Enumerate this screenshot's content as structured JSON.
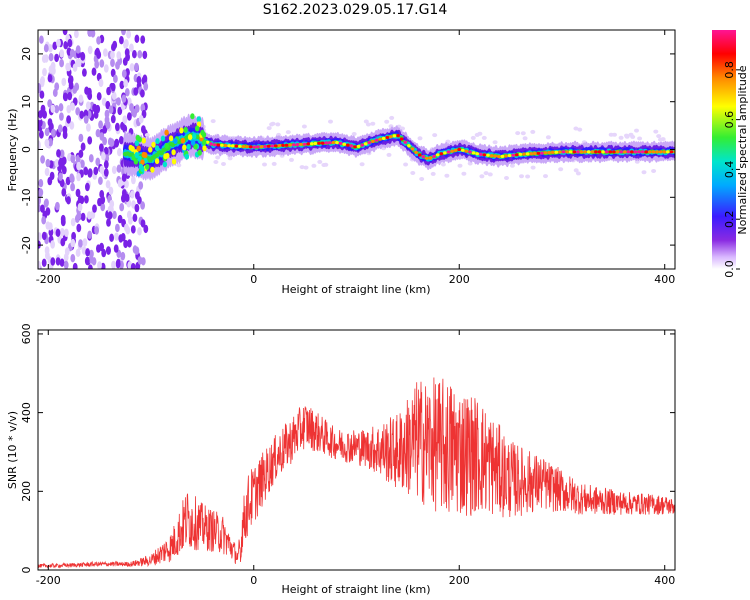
{
  "title": "S162.2023.029.05.17.G14",
  "colors": {
    "snr_line": "#ee3333",
    "axis": "#000000",
    "colormap": [
      "#ffffff",
      "#d9b8ff",
      "#8a2be2",
      "#3b1bff",
      "#00aaff",
      "#00e5cc",
      "#33ee33",
      "#ffff00",
      "#ff8800",
      "#ff0000",
      "#ff1493"
    ]
  },
  "chart_data": [
    {
      "type": "heatmap",
      "xlabel": "Height of straight line (km)",
      "ylabel": "Frequency (Hz)",
      "xlim": [
        -210,
        410
      ],
      "ylim": [
        -25,
        25
      ],
      "xticks": [
        -200,
        0,
        200,
        400
      ],
      "yticks": [
        -20,
        -10,
        0,
        10,
        20
      ],
      "xtick_labels": [
        "-200",
        "0",
        "200",
        "400"
      ],
      "ytick_labels": [
        "-20",
        "-10",
        "0",
        "10",
        "20"
      ],
      "colorbar": {
        "label": "Normalized spectral amplitude",
        "ticks": [
          0.0,
          0.2,
          0.4,
          0.6,
          0.8
        ],
        "tick_labels": [
          "0.0",
          "0.2",
          "0.4",
          "0.6",
          "0.8"
        ]
      },
      "ridge": {
        "x": [
          -140,
          -120,
          -100,
          -80,
          -60,
          -50,
          -40,
          0,
          40,
          80,
          100,
          120,
          140,
          160,
          170,
          180,
          200,
          220,
          240,
          260,
          300,
          350,
          400,
          410
        ],
        "y": [
          0,
          -1,
          -2,
          1,
          3,
          2,
          1,
          0.5,
          1,
          1.5,
          0.5,
          2,
          3,
          -1,
          -2,
          -1,
          0,
          -1,
          -1.5,
          -1,
          -0.5,
          -0.5,
          -0.5,
          -0.5
        ]
      },
      "noise_region_x": [
        -210,
        -125
      ]
    },
    {
      "type": "line",
      "xlabel": "Height of straight line (km)",
      "ylabel": "SNR (10 * v/v)",
      "xlim": [
        -210,
        410
      ],
      "ylim": [
        0,
        610
      ],
      "xticks": [
        -200,
        0,
        200,
        400
      ],
      "yticks": [
        0,
        200,
        400,
        600
      ],
      "xtick_labels": [
        "-200",
        "0",
        "200",
        "400"
      ],
      "ytick_labels": [
        "0",
        "200",
        "400",
        "600"
      ],
      "series": [
        {
          "x": [
            -210,
            -180,
            -150,
            -120,
            -100,
            -80,
            -65,
            -50,
            -30,
            -15,
            -12,
            -5,
            20,
            50,
            80,
            110,
            140,
            160,
            190,
            220,
            250,
            280,
            320,
            360,
            400,
            410
          ],
          "y": [
            10,
            12,
            15,
            15,
            25,
            60,
            130,
            110,
            90,
            30,
            100,
            170,
            280,
            370,
            320,
            310,
            300,
            330,
            310,
            290,
            230,
            220,
            180,
            170,
            165,
            160
          ],
          "spread": [
            5,
            5,
            6,
            6,
            15,
            40,
            80,
            60,
            50,
            20,
            60,
            80,
            60,
            60,
            40,
            50,
            100,
            160,
            180,
            150,
            100,
            70,
            40,
            30,
            25,
            20
          ]
        }
      ]
    }
  ]
}
